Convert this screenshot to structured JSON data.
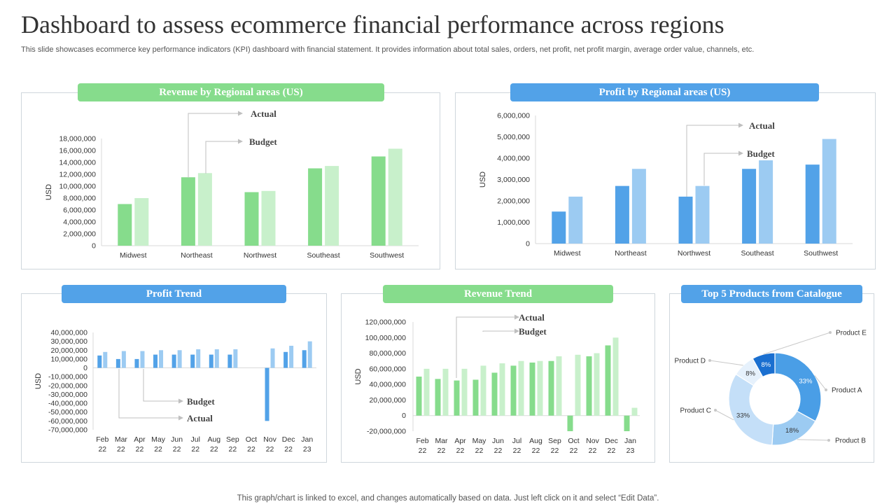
{
  "header": {
    "title": "Dashboard to assess ecommerce financial performance across regions",
    "subtitle": "This slide showcases ecommerce key performance indicators (KPI) dashboard with financial statement. It provides information about total sales, orders, net profit, net profit margin, average order value, channels, etc."
  },
  "footer": {
    "note": "This graph/chart is linked to excel,  and changes automatically based on data. Just left click on it and select “Edit Data”."
  },
  "colors": {
    "green_dark": "#86dc8c",
    "green_light": "#c8f0cb",
    "blue_dark": "#52a2e8",
    "blue_light": "#9ccbf2",
    "header_green": "#86dc8c",
    "header_blue": "#52a2e8"
  },
  "chart_data": [
    {
      "id": "revenue_regional",
      "heading": "Revenue by Regional areas (US)",
      "type": "bar",
      "ylabel": "USD",
      "ylim": [
        0,
        18000000
      ],
      "yticks": [
        "18,000,000",
        "16,000,000",
        "14,000,000",
        "12,000,000",
        "10,000,000",
        "8,000,000",
        "6,000,000",
        "4,000,000",
        "2,000,000",
        "0"
      ],
      "categories": [
        "Midwest",
        "Northeast",
        "Northwest",
        "Southeast",
        "Southwest"
      ],
      "series": [
        {
          "name": "Actual",
          "values": [
            7000000,
            11500000,
            9000000,
            13000000,
            15000000
          ]
        },
        {
          "name": "Budget",
          "values": [
            8000000,
            12200000,
            9200000,
            13400000,
            16300000
          ]
        }
      ],
      "annotations": [
        "Actual",
        "Budget"
      ]
    },
    {
      "id": "profit_regional",
      "heading": "Profit by Regional areas (US)",
      "type": "bar",
      "ylabel": "USD",
      "ylim": [
        0,
        6000000
      ],
      "yticks": [
        "6,000,000",
        "5,000,000",
        "4,000,000",
        "3,000,000",
        "2,000,000",
        "1,000,000",
        "0"
      ],
      "categories": [
        "Midwest",
        "Northeast",
        "Northwest",
        "Southeast",
        "Southwest"
      ],
      "series": [
        {
          "name": "Actual",
          "values": [
            1500000,
            2700000,
            2200000,
            3500000,
            3700000
          ]
        },
        {
          "name": "Budget",
          "values": [
            2200000,
            3500000,
            2700000,
            3900000,
            4900000
          ]
        }
      ],
      "annotations": [
        "Actual",
        "Budget"
      ]
    },
    {
      "id": "profit_trend",
      "heading": "Profit Trend",
      "type": "bar",
      "ylabel": "USD",
      "ylim": [
        -70000000,
        40000000
      ],
      "yticks": [
        "40,000,000",
        "30,000,000",
        "20,000,000",
        "10,000,000",
        "0",
        "-10,000,000",
        "-20,000,000",
        "-30,000,000",
        "-40,000,000",
        "-50,000,000",
        "-60,000,000",
        "-70,000,000"
      ],
      "categories": [
        [
          "Feb",
          "22"
        ],
        [
          "Mar",
          "22"
        ],
        [
          "Apr",
          "22"
        ],
        [
          "May",
          "22"
        ],
        [
          "Jun",
          "22"
        ],
        [
          "Jul",
          "22"
        ],
        [
          "Aug",
          "22"
        ],
        [
          "Sep",
          "22"
        ],
        [
          "Oct",
          "22"
        ],
        [
          "Nov",
          "22"
        ],
        [
          "Dec",
          "22"
        ],
        [
          "Jan",
          "23"
        ]
      ],
      "series": [
        {
          "name": "Actual",
          "values": [
            14000000,
            10000000,
            10000000,
            15000000,
            15000000,
            15000000,
            15000000,
            15000000,
            0,
            -60000000,
            18000000,
            20000000
          ]
        },
        {
          "name": "Budget",
          "values": [
            18000000,
            19000000,
            19000000,
            20000000,
            20000000,
            21000000,
            21000000,
            21000000,
            0,
            22000000,
            25000000,
            30000000
          ]
        }
      ],
      "annotations": [
        "Budget",
        "Actual"
      ]
    },
    {
      "id": "revenue_trend",
      "heading": "Revenue Trend",
      "type": "bar",
      "ylabel": "USD",
      "ylim": [
        -20000000,
        120000000
      ],
      "yticks": [
        "120,000,000",
        "100,000,000",
        "80,000,000",
        "60,000,000",
        "40,000,000",
        "20,000,000",
        "0",
        "-20,000,000"
      ],
      "categories": [
        [
          "Feb",
          "22"
        ],
        [
          "Mar",
          "22"
        ],
        [
          "Apr",
          "22"
        ],
        [
          "May",
          "22"
        ],
        [
          "Jun",
          "22"
        ],
        [
          "Jul",
          "22"
        ],
        [
          "Aug",
          "22"
        ],
        [
          "Sep",
          "22"
        ],
        [
          "Oct",
          "22"
        ],
        [
          "Nov",
          "22"
        ],
        [
          "Dec",
          "22"
        ],
        [
          "Jan",
          "23"
        ]
      ],
      "series": [
        {
          "name": "Actual",
          "values": [
            50000000,
            47000000,
            45000000,
            46000000,
            55000000,
            64000000,
            68000000,
            70000000,
            -20000000,
            76000000,
            90000000,
            -20000000
          ]
        },
        {
          "name": "Budget",
          "values": [
            60000000,
            60000000,
            60000000,
            64000000,
            67000000,
            70000000,
            70000000,
            76000000,
            78000000,
            80000000,
            100000000,
            10000000
          ]
        }
      ],
      "annotations": [
        "Actual",
        "Budget"
      ]
    },
    {
      "id": "top_products",
      "heading": "Top 5 Products from Catalogue",
      "type": "pie",
      "labels": [
        "Product A",
        "Product B",
        "Product C",
        "Product D",
        "Product E"
      ],
      "values": [
        33,
        18,
        33,
        8,
        8
      ],
      "value_labels": [
        "33%",
        "18%",
        "33%",
        "8%",
        "8%"
      ],
      "colors": [
        "#4a9ee6",
        "#9ccbf2",
        "#c4dff8",
        "#e6f1fc",
        "#1a6fd0"
      ]
    }
  ]
}
